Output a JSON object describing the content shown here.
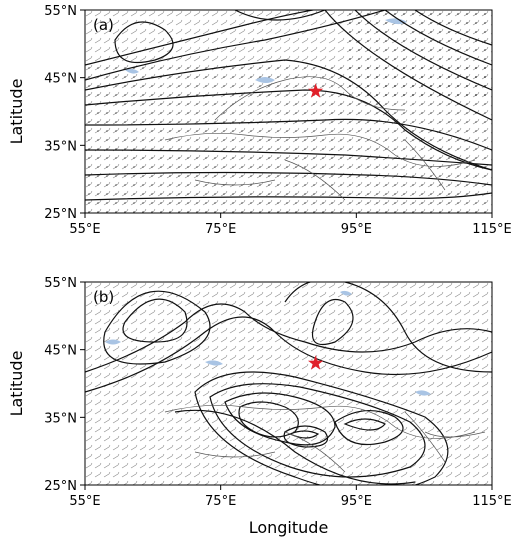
{
  "panels": [
    {
      "label": "(a)",
      "ylabel": "Latitude",
      "xlim": [
        55,
        115
      ],
      "ylim": [
        25,
        55
      ],
      "xticks": [
        {
          "value": 55,
          "label": "55°E"
        },
        {
          "value": 75,
          "label": "75°E"
        },
        {
          "value": 95,
          "label": "95°E"
        },
        {
          "value": 115,
          "label": "115°E"
        }
      ],
      "yticks": [
        {
          "value": 25,
          "label": "25°N"
        },
        {
          "value": 35,
          "label": "35°N"
        },
        {
          "value": 45,
          "label": "45°N"
        },
        {
          "value": 55,
          "label": "55°N"
        }
      ],
      "marker": {
        "lon": 89,
        "lat": 43,
        "color": "#e0202a"
      }
    },
    {
      "label": "(b)",
      "ylabel": "Latitude",
      "xlabel": "Longitude",
      "xlim": [
        55,
        115
      ],
      "ylim": [
        25,
        55
      ],
      "xticks": [
        {
          "value": 55,
          "label": "55°E"
        },
        {
          "value": 75,
          "label": "75°E"
        },
        {
          "value": 95,
          "label": "95°E"
        },
        {
          "value": 115,
          "label": "115°E"
        }
      ],
      "yticks": [
        {
          "value": 25,
          "label": "25°N"
        },
        {
          "value": 35,
          "label": "35°N"
        },
        {
          "value": 45,
          "label": "45°N"
        },
        {
          "value": 55,
          "label": "55°N"
        }
      ],
      "marker": {
        "lon": 89,
        "lat": 43,
        "color": "#e0202a"
      }
    }
  ]
}
